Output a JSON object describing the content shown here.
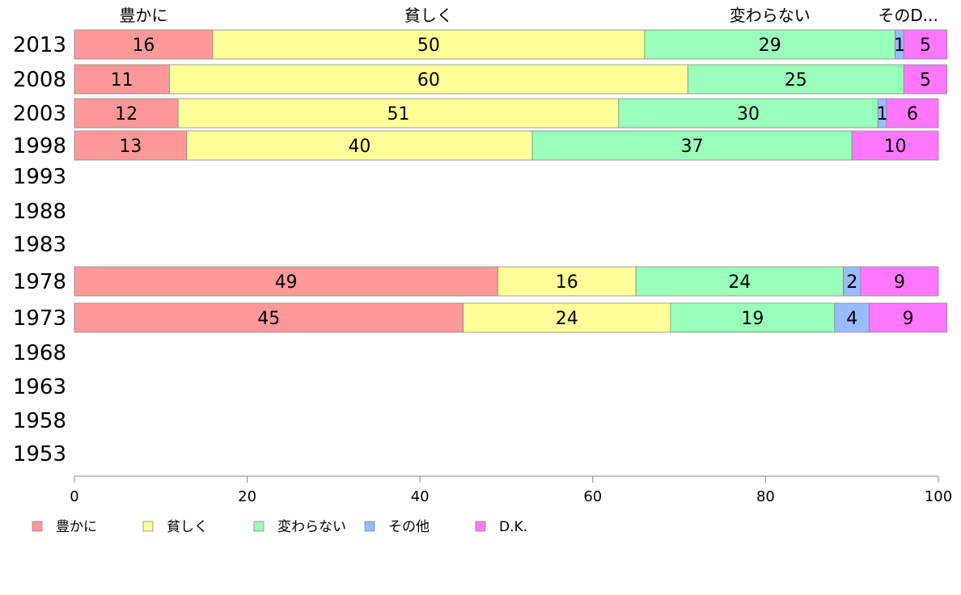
{
  "chart_data": {
    "type": "bar",
    "orientation": "horizontal",
    "stacked": true,
    "categories": [
      "2013",
      "2008",
      "2003",
      "1998",
      "1993",
      "1988",
      "1983",
      "1978",
      "1973",
      "1968",
      "1963",
      "1958",
      "1953"
    ],
    "series": [
      {
        "name": "豊かに",
        "color": "#ff9999",
        "values": [
          16,
          11,
          12,
          13,
          null,
          null,
          null,
          49,
          45,
          null,
          null,
          null,
          null
        ]
      },
      {
        "name": "貧しく",
        "color": "#ffff99",
        "values": [
          50,
          60,
          51,
          40,
          null,
          null,
          null,
          16,
          24,
          null,
          null,
          null,
          null
        ]
      },
      {
        "name": "変わらない",
        "color": "#99ffbb",
        "values": [
          29,
          25,
          30,
          37,
          null,
          null,
          null,
          24,
          19,
          null,
          null,
          null,
          null
        ]
      },
      {
        "name": "その他",
        "color": "#99bbff",
        "values": [
          1,
          0,
          1,
          0,
          null,
          null,
          null,
          2,
          4,
          null,
          null,
          null,
          null
        ]
      },
      {
        "name": "D.K.",
        "color": "#ff77ff",
        "values": [
          5,
          5,
          6,
          10,
          null,
          null,
          null,
          9,
          9,
          null,
          null,
          null,
          null
        ]
      }
    ],
    "top_labels": [
      "豊かに",
      "貧しく",
      "変わらない",
      "そのD..."
    ],
    "xlim": [
      0,
      100
    ],
    "xticks": [
      "0",
      "20",
      "40",
      "60",
      "80",
      "100"
    ],
    "grid": false,
    "legend_position": "bottom"
  }
}
